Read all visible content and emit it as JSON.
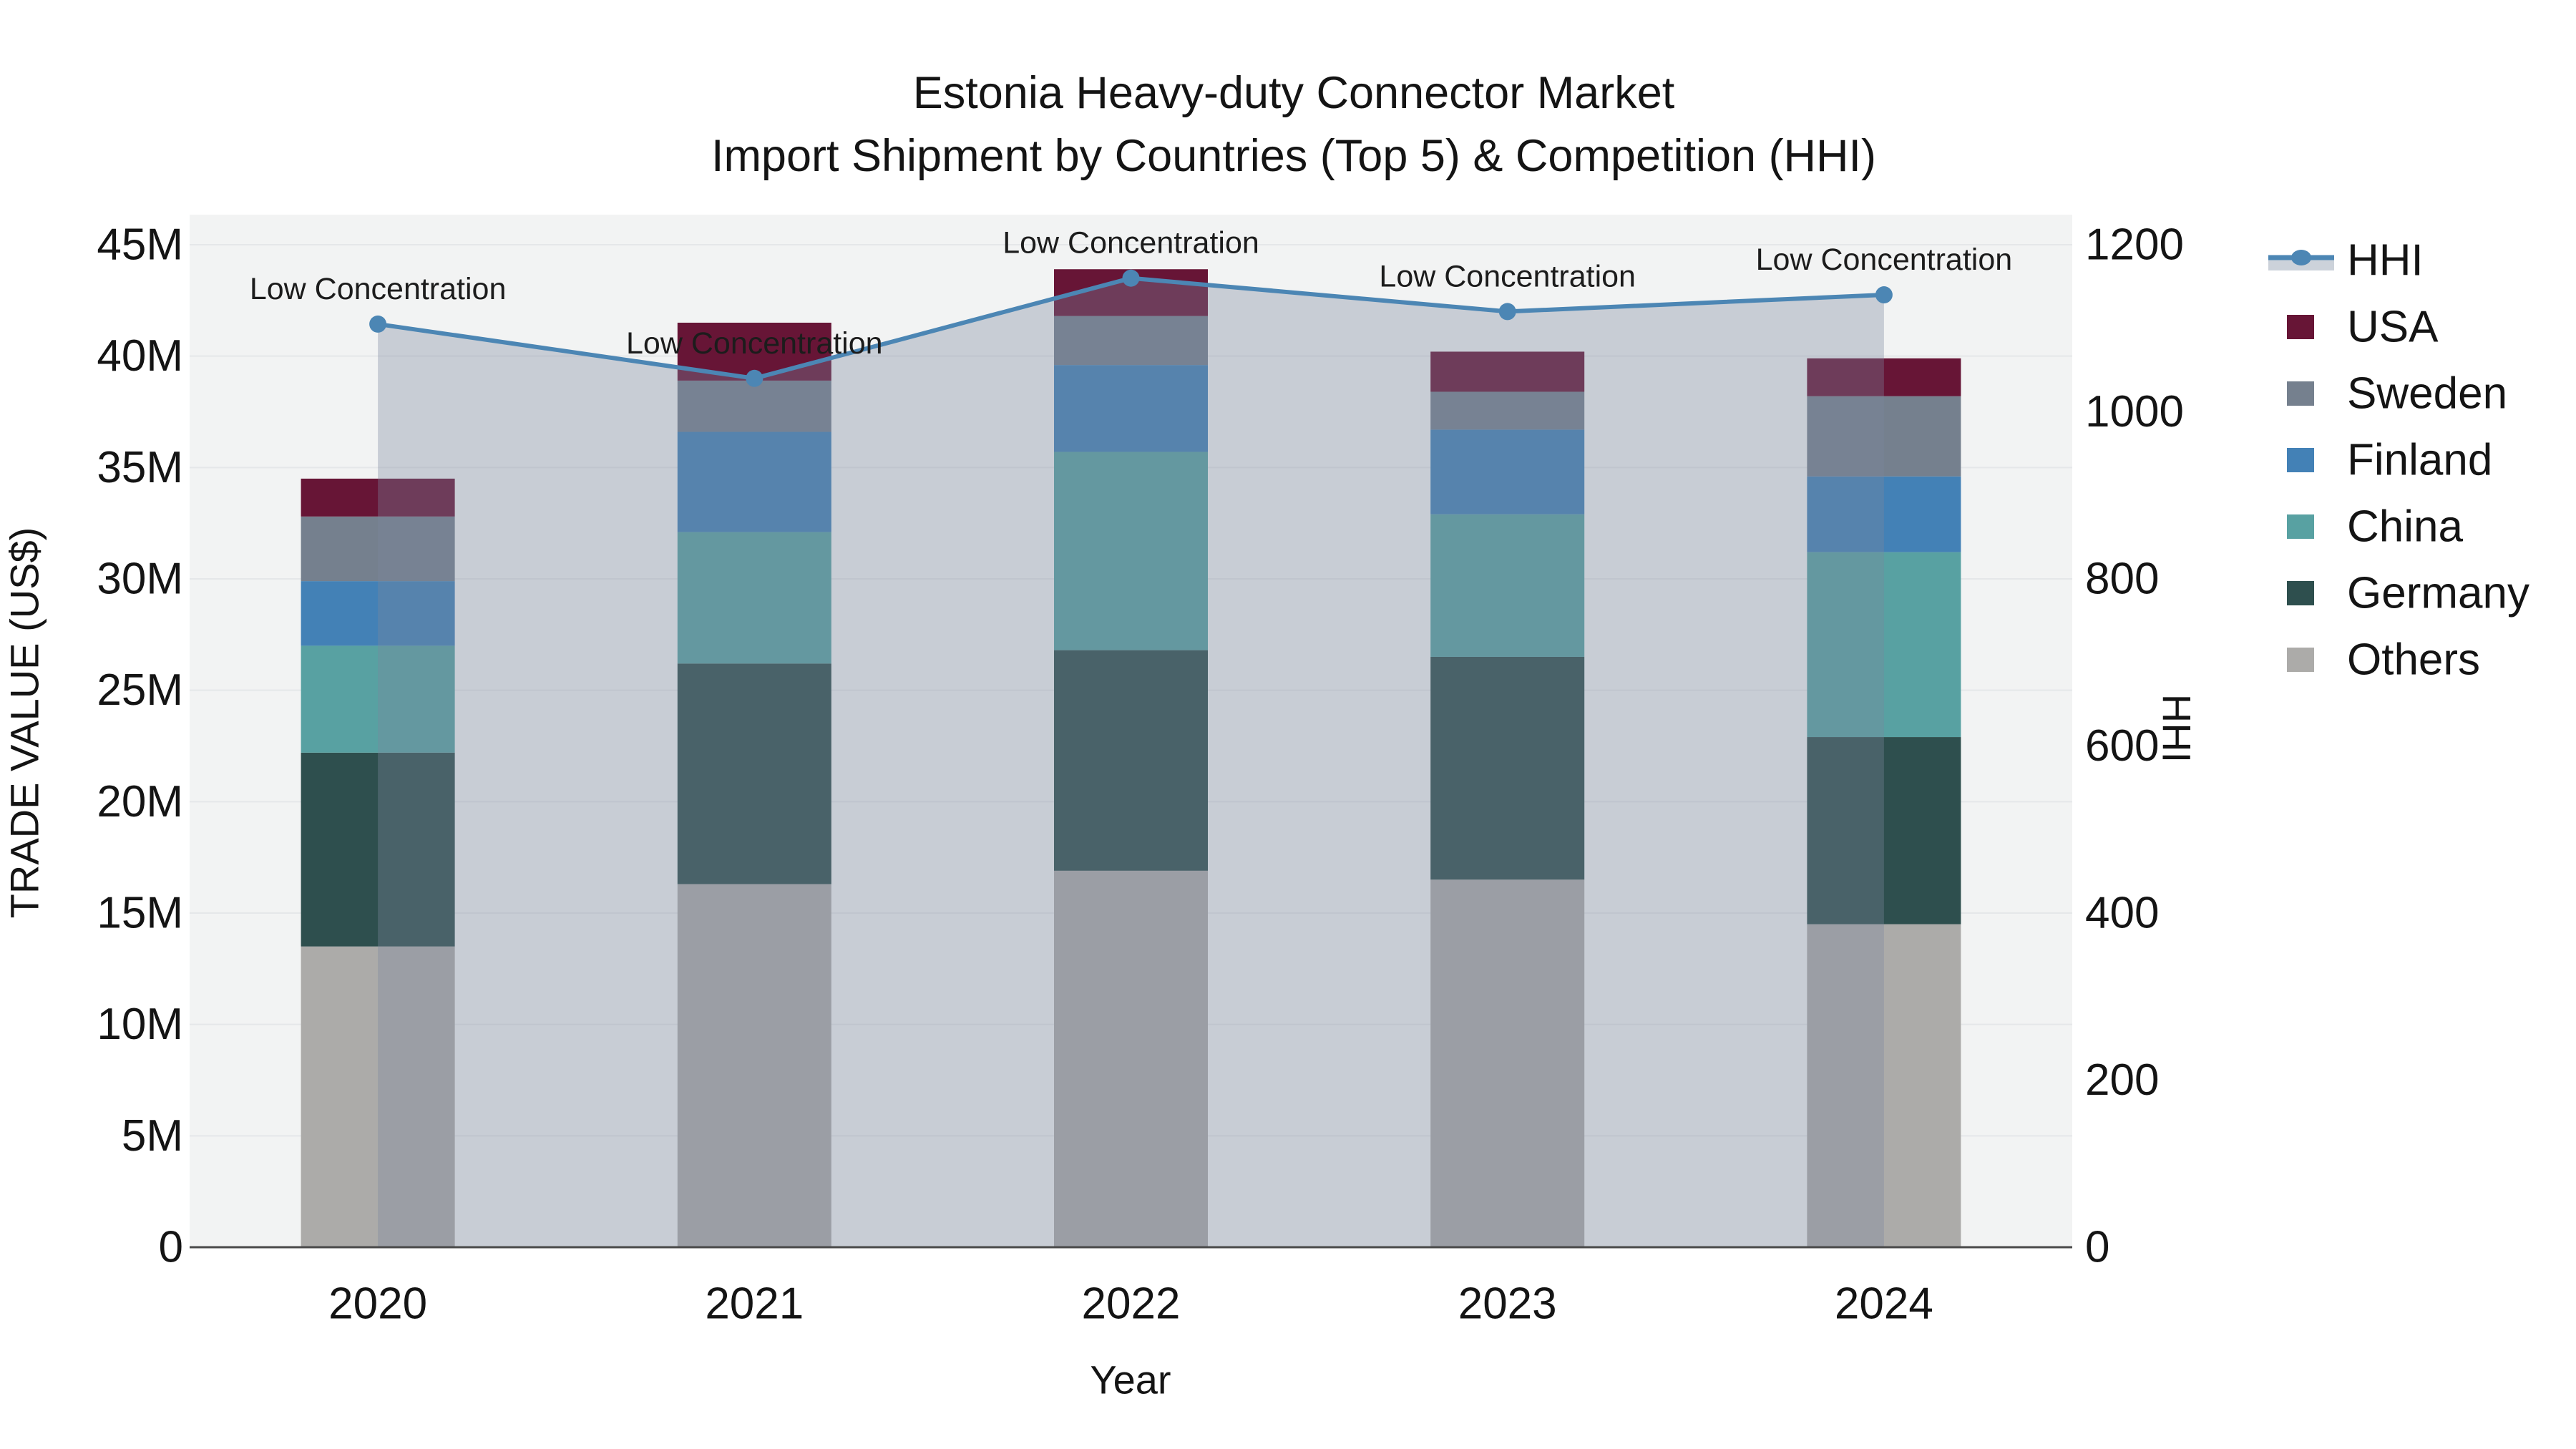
{
  "chart_data": {
    "type": "combo: stacked-bar (left axis) + line with area fill (right axis)",
    "title": "Estonia Heavy-duty Connector Market",
    "subtitle": "Import Shipment by Countries (Top 5) & Competition (HHI)",
    "xlabel": "Year",
    "ylabel_left": "TRADE VALUE (US$)",
    "ylabel_right": "HHI",
    "categories": [
      "2020",
      "2021",
      "2022",
      "2023",
      "2024"
    ],
    "stacked_series_bottom_to_top": [
      {
        "name": "Others",
        "color": "#acaba9",
        "values_million_usd": [
          13.5,
          16.3,
          16.9,
          16.5,
          14.5
        ]
      },
      {
        "name": "Germany",
        "color": "#2e4f4e",
        "values_million_usd": [
          8.7,
          9.9,
          9.9,
          10.0,
          8.4
        ]
      },
      {
        "name": "China",
        "color": "#58a1a2",
        "values_million_usd": [
          4.8,
          5.9,
          8.9,
          6.4,
          8.3
        ]
      },
      {
        "name": "Finland",
        "color": "#4381b6",
        "values_million_usd": [
          2.9,
          4.5,
          3.9,
          3.8,
          3.4
        ]
      },
      {
        "name": "Sweden",
        "color": "#75808e",
        "values_million_usd": [
          2.9,
          2.3,
          2.2,
          1.7,
          3.6
        ]
      },
      {
        "name": "USA",
        "color": "#671536",
        "values_million_usd": [
          1.7,
          2.6,
          2.1,
          1.8,
          1.7
        ]
      }
    ],
    "bar_totals_million_usd": [
      34.5,
      41.5,
      43.9,
      40.2,
      39.9
    ],
    "line_series": {
      "name": "HHI",
      "color": "#4c86b4",
      "values": [
        1105,
        1040,
        1160,
        1120,
        1140
      ],
      "area_fill": "rgba(124,136,158,0.35)",
      "marker": "circle"
    },
    "annotations": [
      {
        "x": "2020",
        "text": "Low Concentration"
      },
      {
        "x": "2021",
        "text": "Low Concentration"
      },
      {
        "x": "2022",
        "text": "Low Concentration"
      },
      {
        "x": "2023",
        "text": "Low Concentration"
      },
      {
        "x": "2024",
        "text": "Low Concentration"
      }
    ],
    "y_left": {
      "min": 0,
      "max": 45000000,
      "tick_labels": [
        "0",
        "5M",
        "10M",
        "15M",
        "20M",
        "25M",
        "30M",
        "35M",
        "40M",
        "45M"
      ]
    },
    "y_right": {
      "min": 0,
      "max": 1200,
      "tick_labels": [
        "0",
        "200",
        "400",
        "600",
        "800",
        "1000",
        "1200"
      ]
    },
    "legend_top_to_bottom": [
      "HHI",
      "USA",
      "Sweden",
      "Finland",
      "China",
      "Germany",
      "Others"
    ],
    "layout_hints": {
      "plot_background": "#f2f3f3",
      "gridlines": "horizontal",
      "gridline_color": "#e5e7e9",
      "axis_line_color": "#4a4a4a",
      "legend_position": "right-top"
    }
  }
}
